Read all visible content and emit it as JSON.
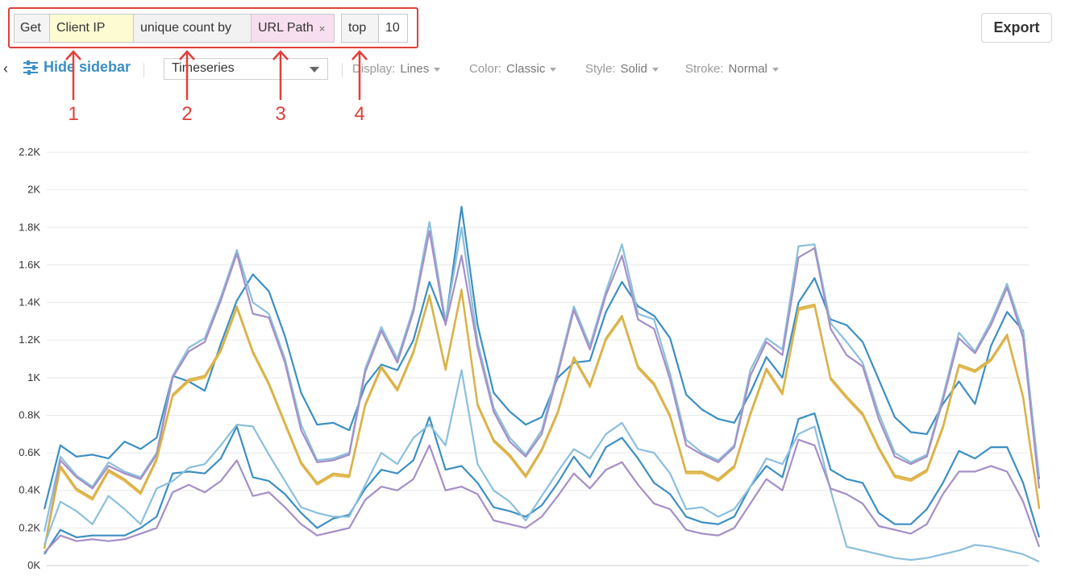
{
  "query": {
    "get_label": "Get",
    "field": "Client IP",
    "operation": "unique count by",
    "group_by": "URL Path",
    "group_by_remove": "×",
    "top_label": "top",
    "top_value": "10"
  },
  "export_label": "Export",
  "toolbar": {
    "back_glyph": "‹",
    "hide_sidebar": "Hide sidebar",
    "view_type": "Timeseries",
    "display_label": "Display:",
    "display_value": "Lines",
    "color_label": "Color:",
    "color_value": "Classic",
    "style_label": "Style:",
    "style_value": "Solid",
    "stroke_label": "Stroke:",
    "stroke_value": "Normal"
  },
  "annotations": [
    "1",
    "2",
    "3",
    "4"
  ],
  "colors": {
    "accent": "#3b8ec6",
    "annotation": "#e0403a",
    "series": [
      "#3c8fc2",
      "#6fa8d6",
      "#8bbfdc",
      "#e6b84a",
      "#a58fc6",
      "#d7b24a"
    ]
  },
  "chart_data": {
    "type": "line",
    "ylim": [
      0,
      2200
    ],
    "y_ticks": [
      "0K",
      "0.2K",
      "0.4K",
      "0.6K",
      "0.8K",
      "1K",
      "1.2K",
      "1.4K",
      "1.6K",
      "1.8K",
      "2K",
      "2.2K"
    ],
    "grid": true,
    "series": [
      {
        "color": "#3c8fc2",
        "values": [
          300,
          640,
          580,
          590,
          570,
          660,
          620,
          680,
          1010,
          980,
          930,
          1180,
          1410,
          1550,
          1460,
          1220,
          920,
          750,
          760,
          720,
          960,
          1070,
          1040,
          1200,
          1510,
          1290,
          1910,
          1280,
          920,
          820,
          750,
          790,
          1000,
          1080,
          1090,
          1350,
          1510,
          1380,
          1330,
          1210,
          910,
          830,
          780,
          760,
          920,
          1110,
          1000,
          1400,
          1530,
          1310,
          1280,
          1190,
          990,
          790,
          710,
          700,
          860,
          980,
          860,
          1170,
          1350,
          1250,
          460
        ]
      },
      {
        "color": "#8bbfdc",
        "values": [
          180,
          580,
          480,
          420,
          550,
          500,
          470,
          600,
          1010,
          1160,
          1210,
          1430,
          1680,
          1400,
          1340,
          1100,
          750,
          560,
          570,
          600,
          1050,
          1270,
          1100,
          1370,
          1830,
          1300,
          1800,
          1190,
          840,
          680,
          590,
          720,
          1040,
          1380,
          1170,
          1460,
          1710,
          1340,
          1310,
          1020,
          670,
          600,
          560,
          640,
          1040,
          1210,
          1150,
          1700,
          1710,
          1290,
          1190,
          1080,
          810,
          600,
          550,
          590,
          900,
          1240,
          1140,
          1300,
          1500,
          1240,
          470
        ]
      },
      {
        "color": "#a58fc6",
        "values": [
          90,
          560,
          470,
          410,
          530,
          490,
          460,
          590,
          1000,
          1140,
          1190,
          1410,
          1660,
          1340,
          1320,
          1080,
          720,
          550,
          560,
          590,
          1030,
          1250,
          1080,
          1350,
          1780,
          1280,
          1650,
          1160,
          820,
          660,
          580,
          700,
          1020,
          1360,
          1150,
          1440,
          1650,
          1310,
          1260,
          990,
          640,
          590,
          550,
          630,
          1010,
          1190,
          1120,
          1640,
          1690,
          1260,
          1120,
          1060,
          780,
          580,
          540,
          580,
          880,
          1210,
          1130,
          1280,
          1480,
          1210,
          410
        ]
      },
      {
        "color": "#e6b84a",
        "values": [
          90,
          520,
          400,
          350,
          500,
          450,
          380,
          560,
          900,
          980,
          1000,
          1140,
          1370,
          1130,
          960,
          750,
          540,
          430,
          480,
          470,
          850,
          1050,
          930,
          1130,
          1430,
          1040,
          1460,
          850,
          660,
          580,
          470,
          610,
          810,
          1100,
          950,
          1200,
          1320,
          1050,
          960,
          790,
          490,
          490,
          450,
          520,
          800,
          1040,
          910,
          1360,
          1380,
          990,
          890,
          800,
          620,
          470,
          450,
          500,
          730,
          1060,
          1030,
          1090,
          1220,
          890,
          300
        ]
      },
      {
        "color": "#d7b24a",
        "values": [
          90,
          530,
          410,
          360,
          510,
          460,
          390,
          570,
          910,
          990,
          1010,
          1150,
          1380,
          1140,
          970,
          760,
          550,
          440,
          490,
          480,
          860,
          1060,
          940,
          1140,
          1440,
          1050,
          1470,
          860,
          670,
          590,
          480,
          620,
          820,
          1110,
          960,
          1210,
          1330,
          1060,
          970,
          800,
          500,
          500,
          460,
          530,
          810,
          1050,
          920,
          1370,
          1390,
          1000,
          900,
          810,
          630,
          480,
          460,
          510,
          740,
          1070,
          1040,
          1100,
          1230,
          900,
          310
        ]
      },
      {
        "color": "#3c8fc2",
        "values": [
          60,
          190,
          150,
          160,
          160,
          160,
          200,
          260,
          490,
          500,
          490,
          570,
          740,
          470,
          450,
          380,
          280,
          200,
          250,
          270,
          410,
          510,
          490,
          560,
          790,
          510,
          530,
          440,
          310,
          290,
          260,
          320,
          440,
          580,
          470,
          630,
          680,
          570,
          440,
          380,
          260,
          230,
          220,
          260,
          420,
          530,
          470,
          780,
          810,
          510,
          460,
          440,
          280,
          220,
          220,
          300,
          440,
          610,
          570,
          630,
          630,
          440,
          150
        ]
      },
      {
        "color": "#8bbfdc",
        "values": [
          110,
          340,
          290,
          220,
          370,
          300,
          220,
          410,
          450,
          520,
          540,
          640,
          750,
          740,
          590,
          450,
          310,
          280,
          260,
          260,
          430,
          600,
          540,
          680,
          750,
          640,
          1040,
          540,
          400,
          340,
          240,
          370,
          500,
          620,
          570,
          700,
          760,
          620,
          600,
          490,
          300,
          310,
          260,
          300,
          420,
          570,
          540,
          700,
          740,
          400,
          100,
          80,
          60,
          40,
          30,
          40,
          60,
          80,
          110,
          100,
          80,
          60,
          20
        ]
      },
      {
        "color": "#a58fc6",
        "values": [
          70,
          160,
          130,
          140,
          130,
          140,
          170,
          200,
          390,
          430,
          390,
          450,
          560,
          370,
          390,
          310,
          220,
          160,
          180,
          200,
          350,
          420,
          400,
          460,
          640,
          400,
          420,
          380,
          240,
          220,
          200,
          260,
          370,
          490,
          410,
          510,
          550,
          430,
          330,
          300,
          190,
          170,
          160,
          200,
          330,
          460,
          400,
          670,
          640,
          410,
          380,
          330,
          210,
          190,
          170,
          220,
          380,
          500,
          500,
          530,
          500,
          340,
          100
        ]
      }
    ]
  }
}
